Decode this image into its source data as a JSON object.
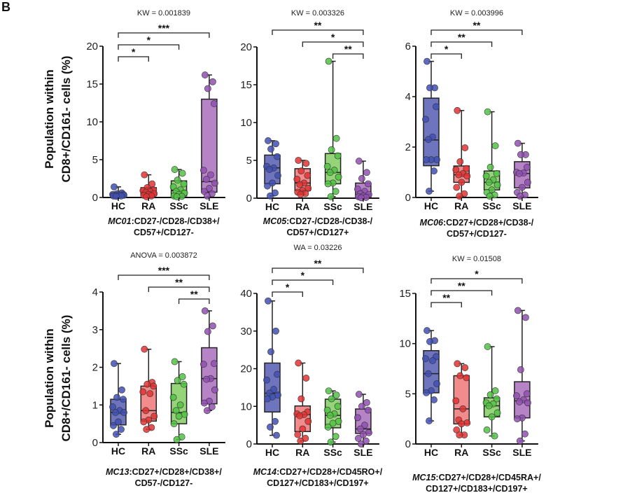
{
  "panel_letter": "B",
  "y_axis_label": [
    "Population within",
    "CD8+/CD161- cells (%)"
  ],
  "colors": {
    "HC": {
      "box": "#6e74bd",
      "dot": "#4150b4"
    },
    "RA": {
      "box": "#f28b8b",
      "dot": "#e23232"
    },
    "SSc": {
      "box": "#96d47a",
      "dot": "#52c244"
    },
    "SLE": {
      "box": "#b583c6",
      "dot": "#9150b2"
    }
  },
  "chart_data": [
    {
      "type": "box",
      "title": "KW = 0.001839",
      "caption": {
        "id": "MC01",
        "line1": ":CD27-/CD28-/CD38+/",
        "line2": "CD57+/CD127-"
      },
      "categories": [
        "HC",
        "RA",
        "SSc",
        "SLE"
      ],
      "ylim": [
        0,
        20
      ],
      "yticks": [
        0,
        5,
        10,
        15,
        20
      ],
      "boxes": [
        {
          "min": 0.1,
          "q1": 0.2,
          "median": 0.35,
          "q3": 0.6,
          "max": 1.4,
          "points": [
            1.4,
            0.6,
            0.5,
            0.4,
            0.4,
            0.35,
            0.3,
            0.3,
            0.25,
            0.2,
            0.2,
            0.15
          ]
        },
        {
          "min": 0.1,
          "q1": 0.3,
          "median": 0.7,
          "q3": 1.3,
          "max": 3.0,
          "points": [
            3.0,
            1.8,
            1.3,
            1.0,
            0.9,
            0.8,
            0.7,
            0.5,
            0.4,
            0.3,
            0.2,
            0.1
          ]
        },
        {
          "min": 0.1,
          "q1": 0.2,
          "median": 0.9,
          "q3": 2.2,
          "max": 3.7,
          "points": [
            3.7,
            3.2,
            2.3,
            1.8,
            1.4,
            1.0,
            0.8,
            0.6,
            0.4,
            0.2,
            0.15,
            0.1
          ]
        },
        {
          "min": 0.1,
          "q1": 0.7,
          "median": 2.1,
          "q3": 13.0,
          "max": 16.2,
          "points": [
            16.2,
            15.3,
            14.4,
            12.4,
            3.6,
            3.0,
            2.4,
            1.9,
            1.2,
            0.8,
            0.5,
            0.2
          ]
        }
      ],
      "comparisons": [
        {
          "from": "HC",
          "to": "SLE",
          "label": "***"
        },
        {
          "from": "HC",
          "to": "SSc",
          "label": "*"
        },
        {
          "from": "HC",
          "to": "RA",
          "label": "*"
        }
      ]
    },
    {
      "type": "box",
      "title": "KW = 0.003326",
      "caption": {
        "id": "MC05",
        "line1": ":CD27-/CD28-/CD38-/",
        "line2": "CD57+/CD127+"
      },
      "categories": [
        "HC",
        "RA",
        "SSc",
        "SLE"
      ],
      "ylim": [
        0,
        20
      ],
      "yticks": [
        0,
        5,
        10,
        15,
        20
      ],
      "boxes": [
        {
          "min": 0.3,
          "q1": 1.9,
          "median": 4.0,
          "q3": 5.7,
          "max": 7.6,
          "points": [
            7.6,
            7.2,
            6.5,
            5.5,
            4.2,
            4.0,
            3.8,
            3.0,
            2.0,
            1.6,
            0.7,
            0.3
          ]
        },
        {
          "min": 0.5,
          "q1": 1.0,
          "median": 2.0,
          "q3": 3.9,
          "max": 5.0,
          "points": [
            5.0,
            4.6,
            3.6,
            3.0,
            2.5,
            2.0,
            1.8,
            1.3,
            1.0,
            0.8,
            0.6,
            0.5
          ]
        },
        {
          "min": 0.2,
          "q1": 1.9,
          "median": 3.4,
          "q3": 5.9,
          "max": 18.1,
          "points": [
            18.1,
            7.9,
            6.4,
            5.6,
            4.2,
            3.7,
            3.4,
            2.8,
            2.0,
            1.9,
            0.9,
            0.2
          ]
        },
        {
          "min": 0.05,
          "q1": 0.1,
          "median": 0.5,
          "q3": 2.0,
          "max": 4.9,
          "points": [
            4.9,
            3.4,
            2.6,
            1.9,
            1.2,
            0.9,
            0.6,
            0.5,
            0.3,
            0.2,
            0.1,
            0.05
          ]
        }
      ],
      "comparisons": [
        {
          "from": "HC",
          "to": "SLE",
          "label": "**"
        },
        {
          "from": "RA",
          "to": "SLE",
          "label": "*"
        },
        {
          "from": "SSc",
          "to": "SLE",
          "label": "**"
        }
      ]
    },
    {
      "type": "box",
      "title": "KW = 0.003996",
      "caption": {
        "id": "MC06",
        "line1": ":CD27+/CD28+/CD38-/",
        "line2": "CD57+/CD127-"
      },
      "categories": [
        "HC",
        "RA",
        "SSc",
        "SLE"
      ],
      "ylim": [
        0,
        6
      ],
      "yticks": [
        0,
        2,
        4,
        6
      ],
      "boxes": [
        {
          "min": 0.25,
          "q1": 1.26,
          "median": 2.28,
          "q3": 3.94,
          "max": 5.4,
          "points": [
            5.4,
            4.35,
            4.35,
            3.6,
            3.1,
            2.4,
            2.3,
            1.5,
            1.5,
            1.5,
            1.05,
            0.25
          ]
        },
        {
          "min": 0.05,
          "q1": 0.6,
          "median": 0.9,
          "q3": 1.25,
          "max": 3.45,
          "points": [
            3.45,
            1.97,
            1.42,
            1.15,
            1.1,
            0.95,
            0.9,
            0.85,
            0.6,
            0.4,
            0.15,
            0.05
          ]
        },
        {
          "min": 0.05,
          "q1": 0.3,
          "median": 0.6,
          "q3": 1.05,
          "max": 3.4,
          "points": [
            3.4,
            2.05,
            1.2,
            0.95,
            0.85,
            0.7,
            0.6,
            0.5,
            0.3,
            0.2,
            0.1,
            0.05
          ]
        },
        {
          "min": 0.05,
          "q1": 0.38,
          "median": 0.95,
          "q3": 1.42,
          "max": 2.15,
          "points": [
            2.15,
            1.7,
            1.7,
            1.2,
            1.0,
            0.97,
            0.95,
            0.6,
            0.4,
            0.2,
            0.1,
            0.05
          ]
        }
      ],
      "comparisons": [
        {
          "from": "HC",
          "to": "SLE",
          "label": "**"
        },
        {
          "from": "HC",
          "to": "SSc",
          "label": "**"
        },
        {
          "from": "HC",
          "to": "RA",
          "label": "*"
        }
      ]
    },
    {
      "type": "box",
      "title": "ANOVA = 0.003872",
      "caption": {
        "id": "MC13",
        "line1": ":CD27+/CD28+/CD38+/",
        "line2": "CD57-/CD127-"
      },
      "categories": [
        "HC",
        "RA",
        "SSc",
        "SLE"
      ],
      "ylim": [
        0,
        4
      ],
      "yticks": [
        0,
        1,
        2,
        3,
        4
      ],
      "boxes": [
        {
          "min": 0.22,
          "q1": 0.47,
          "median": 0.8,
          "q3": 1.15,
          "max": 2.1,
          "points": [
            2.1,
            1.4,
            1.2,
            1.15,
            0.95,
            0.85,
            0.8,
            0.8,
            0.55,
            0.45,
            0.35,
            0.22
          ]
        },
        {
          "min": 0.35,
          "q1": 0.57,
          "median": 0.85,
          "q3": 1.5,
          "max": 2.48,
          "points": [
            2.48,
            1.6,
            1.55,
            1.5,
            1.35,
            1.3,
            0.85,
            0.7,
            0.6,
            0.55,
            0.4,
            0.35
          ]
        },
        {
          "min": 0.08,
          "q1": 0.5,
          "median": 0.8,
          "q3": 1.57,
          "max": 2.15,
          "points": [
            2.15,
            1.75,
            1.65,
            1.55,
            1.2,
            1.0,
            0.85,
            0.75,
            0.7,
            0.5,
            0.15,
            0.08
          ]
        },
        {
          "min": 0.85,
          "q1": 1.03,
          "median": 1.7,
          "q3": 2.52,
          "max": 3.5,
          "points": [
            3.5,
            3.1,
            2.95,
            2.1,
            2.08,
            1.7,
            1.68,
            1.4,
            1.1,
            1.05,
            0.95,
            0.85
          ]
        }
      ],
      "comparisons": [
        {
          "from": "HC",
          "to": "SLE",
          "label": "***"
        },
        {
          "from": "RA",
          "to": "SLE",
          "label": "**"
        },
        {
          "from": "SSc",
          "to": "SLE",
          "label": "**"
        }
      ]
    },
    {
      "type": "box",
      "title": "WA = 0.03226",
      "caption": {
        "id": "MC14",
        "line1": ":CD27+/CD28+/CD45RO+/",
        "line2": "CD127+/CD183+/CD197+"
      },
      "categories": [
        "HC",
        "RA",
        "SSc",
        "SLE"
      ],
      "ylim": [
        0,
        40
      ],
      "yticks": [
        0,
        10,
        20,
        30,
        40
      ],
      "boxes": [
        {
          "min": 2.3,
          "q1": 8.5,
          "median": 13.5,
          "q3": 21.5,
          "max": 38,
          "points": [
            38,
            30,
            24.5,
            18.5,
            17,
            14.5,
            13.5,
            13,
            12.5,
            12,
            6,
            4.5,
            2.3
          ]
        },
        {
          "min": 0.8,
          "q1": 3.3,
          "median": 7.8,
          "q3": 10.1,
          "max": 21.5,
          "points": [
            21.5,
            17.5,
            12,
            8.5,
            8,
            7.8,
            7.5,
            6,
            4,
            2.5,
            1.5,
            0.8
          ]
        },
        {
          "min": 0.5,
          "q1": 4.3,
          "median": 7.6,
          "q3": 11.9,
          "max": 14.1,
          "points": [
            14.1,
            13,
            12,
            10,
            9,
            8,
            7.6,
            6,
            5.5,
            4.5,
            2,
            0.5
          ]
        },
        {
          "min": 0,
          "q1": 2.8,
          "median": 4,
          "q3": 9.3,
          "max": 13.2,
          "points": [
            13.2,
            11,
            10,
            9,
            7,
            5,
            4,
            3,
            2.5,
            1.5,
            0.8,
            0
          ]
        }
      ],
      "comparisons": [
        {
          "from": "HC",
          "to": "SLE",
          "label": "**"
        },
        {
          "from": "HC",
          "to": "SSc",
          "label": "*"
        },
        {
          "from": "HC",
          "to": "RA",
          "label": "*"
        }
      ]
    },
    {
      "type": "box",
      "title": "KW = 0.01508",
      "caption": {
        "id": "MC15",
        "line1": ":CD27+/CD28+/CD45RA+/",
        "line2": "CD127+/CD183+/CD197+"
      },
      "categories": [
        "HC",
        "RA",
        "SSc",
        "SLE"
      ],
      "ylim": [
        0,
        15
      ],
      "yticks": [
        0,
        5,
        10,
        15
      ],
      "boxes": [
        {
          "min": 2.3,
          "q1": 5.1,
          "median": 7.0,
          "q3": 9.3,
          "max": 11.3,
          "points": [
            11.3,
            10.3,
            10.2,
            8.7,
            8.5,
            8.3,
            7.0,
            6.0,
            5.3,
            5.1,
            4.4,
            2.3
          ]
        },
        {
          "min": 0.9,
          "q1": 2.0,
          "median": 3.5,
          "q3": 6.8,
          "max": 8.0,
          "points": [
            8.0,
            7.6,
            6.8,
            6.6,
            4.3,
            3.5,
            2.4,
            2.1,
            2.0,
            1.4,
            0.9,
            0.9
          ]
        },
        {
          "min": 0.8,
          "q1": 2.7,
          "median": 3.8,
          "q3": 4.6,
          "max": 9.7,
          "points": [
            9.7,
            5.3,
            4.9,
            4.5,
            4.1,
            4.0,
            3.8,
            3.1,
            2.7,
            1.4,
            0.8
          ]
        },
        {
          "min": 0.3,
          "q1": 2.6,
          "median": 4.3,
          "q3": 6.2,
          "max": 13.3,
          "points": [
            13.3,
            12.6,
            7.4,
            5.0,
            4.8,
            4.4,
            4.2,
            4.1,
            2.6,
            2.5,
            1.0,
            0.3
          ]
        }
      ],
      "comparisons": [
        {
          "from": "HC",
          "to": "SLE",
          "label": "*"
        },
        {
          "from": "HC",
          "to": "SSc",
          "label": "**"
        },
        {
          "from": "HC",
          "to": "RA",
          "label": "**"
        }
      ]
    }
  ]
}
